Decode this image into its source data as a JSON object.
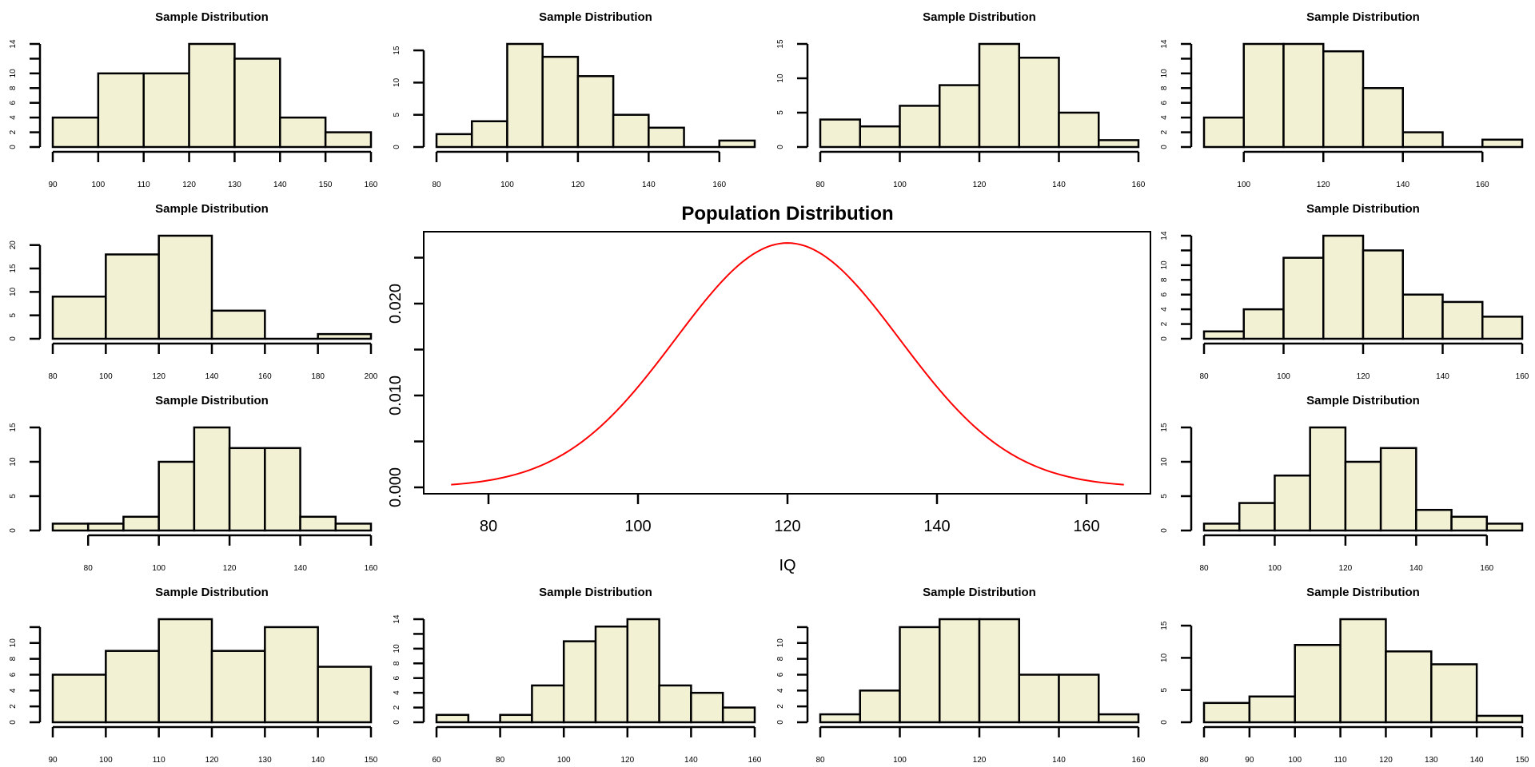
{
  "chart_data": [
    {
      "type": "bar",
      "panel": "row1-col1",
      "title": "Sample Distribution",
      "breaks": [
        90,
        100,
        110,
        120,
        130,
        140,
        150,
        160
      ],
      "counts": [
        4,
        10,
        10,
        14,
        12,
        4,
        2
      ],
      "x_ticks": [
        90,
        100,
        110,
        120,
        130,
        140,
        150,
        160
      ],
      "y_ticks": [
        0,
        2,
        4,
        6,
        8,
        10,
        12,
        14
      ],
      "y_tick_labels": [
        "0",
        "2",
        "4",
        "6",
        "8",
        "10",
        "",
        "14"
      ]
    },
    {
      "type": "bar",
      "panel": "row1-col2",
      "title": "Sample Distribution",
      "breaks": [
        80,
        90,
        100,
        110,
        120,
        130,
        140,
        150,
        160,
        170
      ],
      "counts": [
        2,
        4,
        16,
        14,
        11,
        5,
        3,
        0,
        1
      ],
      "x_ticks": [
        80,
        100,
        120,
        140,
        160
      ],
      "y_ticks": [
        0,
        5,
        10,
        15
      ],
      "y_tick_labels": [
        "0",
        "5",
        "10",
        "15"
      ]
    },
    {
      "type": "bar",
      "panel": "row1-col3",
      "title": "Sample Distribution",
      "breaks": [
        80,
        90,
        100,
        110,
        120,
        130,
        140,
        150,
        160
      ],
      "counts": [
        4,
        3,
        6,
        9,
        15,
        13,
        5,
        1
      ],
      "x_ticks": [
        80,
        100,
        120,
        140,
        160
      ],
      "y_ticks": [
        0,
        5,
        10,
        15
      ],
      "y_tick_labels": [
        "0",
        "5",
        "10",
        "15"
      ]
    },
    {
      "type": "bar",
      "panel": "row1-col4",
      "title": "Sample Distribution",
      "breaks": [
        90,
        100,
        110,
        120,
        130,
        140,
        150,
        160,
        170
      ],
      "counts": [
        4,
        14,
        14,
        13,
        8,
        2,
        0,
        1
      ],
      "x_ticks": [
        100,
        120,
        140,
        160
      ],
      "y_ticks": [
        0,
        2,
        4,
        6,
        8,
        10,
        12,
        14
      ],
      "y_tick_labels": [
        "0",
        "2",
        "4",
        "6",
        "8",
        "10",
        "",
        "14"
      ]
    },
    {
      "type": "bar",
      "panel": "row2-col1",
      "title": "Sample Distribution",
      "breaks": [
        80,
        100,
        120,
        140,
        160,
        180,
        200
      ],
      "counts": [
        9,
        18,
        22,
        6,
        0,
        1
      ],
      "x_ticks": [
        80,
        100,
        120,
        140,
        160,
        180,
        200
      ],
      "y_ticks": [
        0,
        5,
        10,
        15,
        20
      ],
      "y_tick_labels": [
        "0",
        "5",
        "10",
        "15",
        "20"
      ]
    },
    {
      "type": "bar",
      "panel": "row2-col4",
      "title": "Sample Distribution",
      "breaks": [
        80,
        90,
        100,
        110,
        120,
        130,
        140,
        150,
        160
      ],
      "counts": [
        1,
        4,
        11,
        14,
        12,
        6,
        5,
        3
      ],
      "x_ticks": [
        80,
        100,
        120,
        140,
        160
      ],
      "y_ticks": [
        0,
        2,
        4,
        6,
        8,
        10,
        12,
        14
      ],
      "y_tick_labels": [
        "0",
        "2",
        "4",
        "6",
        "8",
        "10",
        "",
        "14"
      ]
    },
    {
      "type": "bar",
      "panel": "row3-col1",
      "title": "Sample Distribution",
      "breaks": [
        70,
        80,
        90,
        100,
        110,
        120,
        130,
        140,
        150,
        160
      ],
      "counts": [
        1,
        1,
        2,
        10,
        15,
        12,
        12,
        2,
        1
      ],
      "x_ticks": [
        80,
        100,
        120,
        140,
        160
      ],
      "y_ticks": [
        0,
        5,
        10,
        15
      ],
      "y_tick_labels": [
        "0",
        "5",
        "10",
        "15"
      ]
    },
    {
      "type": "bar",
      "panel": "row3-col4",
      "title": "Sample Distribution",
      "breaks": [
        80,
        90,
        100,
        110,
        120,
        130,
        140,
        150,
        160,
        170
      ],
      "counts": [
        1,
        4,
        8,
        15,
        10,
        12,
        3,
        2,
        1
      ],
      "x_ticks": [
        80,
        100,
        120,
        140,
        160
      ],
      "y_ticks": [
        0,
        5,
        10,
        15
      ],
      "y_tick_labels": [
        "0",
        "5",
        "10",
        "15"
      ]
    },
    {
      "type": "bar",
      "panel": "row4-col1",
      "title": "Sample Distribution",
      "breaks": [
        90,
        100,
        110,
        120,
        130,
        140,
        150
      ],
      "counts": [
        6,
        9,
        13,
        9,
        12,
        7
      ],
      "x_ticks": [
        90,
        100,
        110,
        120,
        130,
        140,
        150
      ],
      "y_ticks": [
        0,
        2,
        4,
        6,
        8,
        10,
        12
      ],
      "y_tick_labels": [
        "0",
        "2",
        "4",
        "6",
        "8",
        "10",
        ""
      ]
    },
    {
      "type": "bar",
      "panel": "row4-col2",
      "title": "Sample Distribution",
      "breaks": [
        60,
        70,
        80,
        90,
        100,
        110,
        120,
        130,
        140,
        150,
        160
      ],
      "counts": [
        1,
        0,
        1,
        5,
        11,
        13,
        14,
        5,
        4,
        2
      ],
      "x_ticks": [
        60,
        80,
        100,
        120,
        140,
        160
      ],
      "y_ticks": [
        0,
        2,
        4,
        6,
        8,
        10,
        12,
        14
      ],
      "y_tick_labels": [
        "0",
        "2",
        "4",
        "6",
        "8",
        "10",
        "",
        "14"
      ]
    },
    {
      "type": "bar",
      "panel": "row4-col3",
      "title": "Sample Distribution",
      "breaks": [
        80,
        90,
        100,
        110,
        120,
        130,
        140,
        150,
        160
      ],
      "counts": [
        1,
        4,
        12,
        13,
        13,
        6,
        6,
        1
      ],
      "x_ticks": [
        80,
        100,
        120,
        140,
        160
      ],
      "y_ticks": [
        0,
        2,
        4,
        6,
        8,
        10,
        12
      ],
      "y_tick_labels": [
        "0",
        "2",
        "4",
        "6",
        "8",
        "10",
        ""
      ]
    },
    {
      "type": "bar",
      "panel": "row4-col4",
      "title": "Sample Distribution",
      "breaks": [
        80,
        90,
        100,
        110,
        120,
        130,
        140,
        150
      ],
      "counts": [
        3,
        4,
        12,
        16,
        11,
        9,
        1
      ],
      "x_ticks": [
        80,
        90,
        100,
        110,
        120,
        130,
        140,
        150
      ],
      "y_ticks": [
        0,
        5,
        10,
        15
      ],
      "y_tick_labels": [
        "0",
        "5",
        "10",
        "15"
      ]
    },
    {
      "type": "line",
      "panel": "center",
      "title": "Population Distribution",
      "xlabel": "IQ",
      "ylabel": "",
      "distribution": "normal",
      "mean": 120,
      "sd": 15,
      "x_range": [
        75,
        165
      ],
      "xlim": [
        70,
        170
      ],
      "ylim": [
        0,
        0.0275
      ],
      "x_ticks": [
        80,
        100,
        120,
        140,
        160
      ],
      "y_ticks": [
        0,
        0.005,
        0.01,
        0.015,
        0.02,
        0.025
      ],
      "y_tick_labels": [
        "0.000",
        "",
        "0.010",
        "",
        "0.020",
        ""
      ],
      "line_color": "#ff0000"
    }
  ],
  "colors": {
    "bar_fill": "#f2f1d4",
    "curve": "#ff0000"
  }
}
